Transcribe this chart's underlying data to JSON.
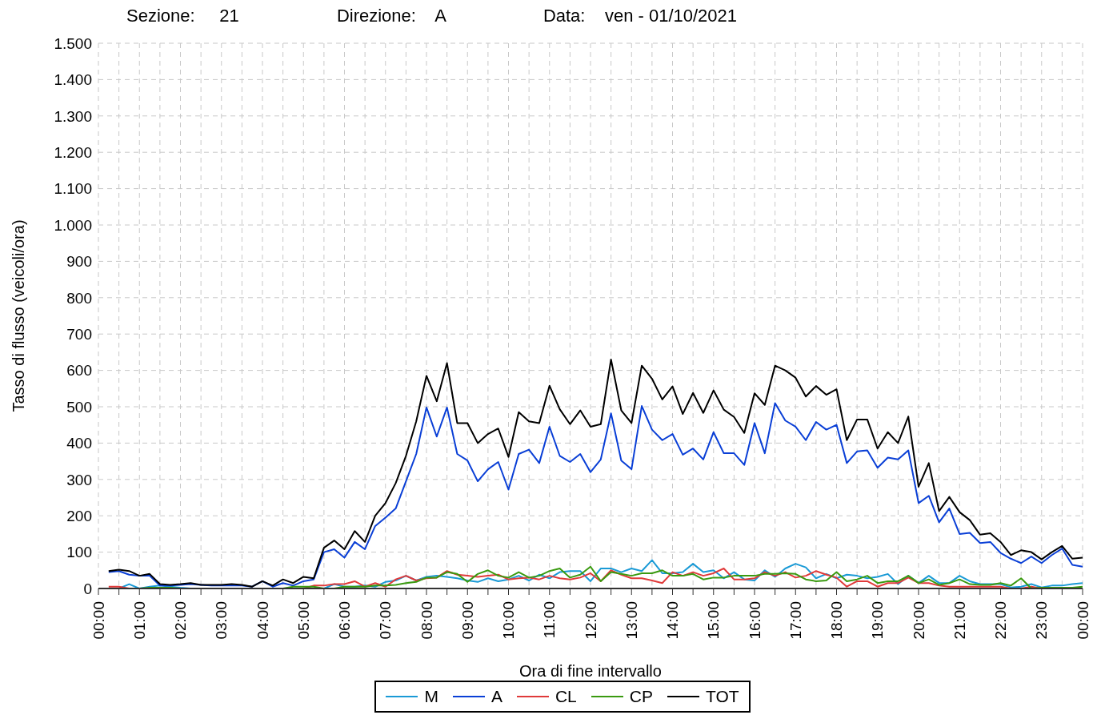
{
  "chart_data": {
    "type": "line",
    "title": "Sezione:     21                    Direzione:    A                    Data:    ven - 01/10/2021",
    "xlabel": "Ora di fine intervallo",
    "ylabel": "Tasso di flusso (veicoli/ora)",
    "x": [
      0.25,
      0.5,
      0.75,
      1,
      1.25,
      1.5,
      1.75,
      2,
      2.25,
      2.5,
      2.75,
      3,
      3.25,
      3.5,
      3.75,
      4,
      4.25,
      4.5,
      4.75,
      5,
      5.25,
      5.5,
      5.75,
      6,
      6.25,
      6.5,
      6.75,
      7,
      7.25,
      7.5,
      7.75,
      8,
      8.25,
      8.5,
      8.75,
      9,
      9.25,
      9.5,
      9.75,
      10,
      10.25,
      10.5,
      10.75,
      11,
      11.25,
      11.5,
      11.75,
      12,
      12.25,
      12.5,
      12.75,
      13,
      13.25,
      13.5,
      13.75,
      14,
      14.25,
      14.5,
      14.75,
      15,
      15.25,
      15.5,
      15.75,
      16,
      16.25,
      16.5,
      16.75,
      17,
      17.25,
      17.5,
      17.75,
      18,
      18.25,
      18.5,
      18.75,
      19,
      19.25,
      19.5,
      19.75,
      20,
      20.25,
      20.5,
      20.75,
      21,
      21.25,
      21.5,
      21.75,
      22,
      22.25,
      22.5,
      22.75,
      23,
      23.25,
      23.5,
      23.75,
      24
    ],
    "series": [
      {
        "name": "M",
        "color": "#1a9ad6",
        "values": [
          0,
          0,
          12,
          0,
          5,
          8,
          5,
          2,
          0,
          0,
          0,
          0,
          0,
          0,
          0,
          0,
          0,
          0,
          0,
          0,
          0,
          0,
          12,
          5,
          5,
          8,
          5,
          18,
          22,
          35,
          22,
          32,
          35,
          32,
          28,
          22,
          18,
          28,
          20,
          25,
          35,
          22,
          38,
          28,
          45,
          48,
          48,
          20,
          55,
          55,
          45,
          55,
          48,
          78,
          42,
          42,
          45,
          68,
          45,
          50,
          28,
          45,
          25,
          22,
          50,
          32,
          55,
          68,
          58,
          28,
          40,
          28,
          38,
          35,
          28,
          32,
          40,
          12,
          35,
          15,
          35,
          15,
          15,
          35,
          20,
          12,
          12,
          12,
          3,
          5,
          12,
          3,
          8,
          8,
          12,
          15
        ]
      },
      {
        "name": "A",
        "color": "#0a3fd6",
        "values": [
          45,
          48,
          38,
          35,
          35,
          8,
          8,
          10,
          12,
          10,
          8,
          8,
          8,
          8,
          5,
          20,
          5,
          15,
          8,
          20,
          25,
          100,
          108,
          85,
          128,
          108,
          172,
          195,
          220,
          295,
          370,
          498,
          418,
          498,
          370,
          352,
          295,
          328,
          348,
          272,
          370,
          382,
          345,
          445,
          365,
          348,
          370,
          320,
          355,
          482,
          352,
          328,
          502,
          437,
          408,
          425,
          368,
          385,
          355,
          430,
          372,
          372,
          340,
          455,
          372,
          510,
          462,
          445,
          408,
          458,
          437,
          450,
          345,
          377,
          380,
          332,
          360,
          355,
          380,
          235,
          255,
          182,
          220,
          150,
          153,
          125,
          128,
          98,
          82,
          70,
          88,
          70,
          92,
          110,
          65,
          60
        ]
      },
      {
        "name": "CL",
        "color": "#e03a3a",
        "values": [
          5,
          5,
          0,
          0,
          0,
          0,
          0,
          0,
          0,
          0,
          0,
          0,
          0,
          0,
          0,
          0,
          0,
          0,
          0,
          0,
          8,
          8,
          12,
          12,
          20,
          5,
          15,
          5,
          25,
          35,
          22,
          28,
          30,
          48,
          38,
          35,
          32,
          35,
          38,
          25,
          28,
          30,
          25,
          35,
          28,
          25,
          30,
          42,
          20,
          50,
          38,
          28,
          28,
          22,
          15,
          45,
          35,
          45,
          35,
          42,
          55,
          25,
          25,
          28,
          45,
          35,
          45,
          30,
          35,
          48,
          38,
          30,
          5,
          20,
          20,
          5,
          15,
          15,
          30,
          15,
          15,
          8,
          5,
          5,
          5,
          5,
          5,
          5,
          0,
          0,
          5,
          0,
          0,
          null,
          null,
          null
        ]
      },
      {
        "name": "CP",
        "color": "#3a9a10",
        "values": [
          null,
          null,
          null,
          0,
          2,
          2,
          2,
          0,
          0,
          0,
          0,
          0,
          0,
          0,
          0,
          0,
          0,
          0,
          5,
          5,
          5,
          0,
          0,
          5,
          5,
          5,
          8,
          8,
          10,
          15,
          18,
          30,
          30,
          45,
          40,
          18,
          40,
          50,
          35,
          30,
          45,
          30,
          35,
          48,
          55,
          30,
          38,
          60,
          20,
          45,
          40,
          35,
          42,
          42,
          50,
          35,
          35,
          40,
          25,
          30,
          30,
          35,
          35,
          35,
          40,
          40,
          42,
          40,
          25,
          20,
          22,
          45,
          20,
          25,
          35,
          15,
          20,
          20,
          35,
          15,
          25,
          10,
          15,
          25,
          12,
          10,
          10,
          15,
          8,
          28,
          0,
          2,
          2,
          2,
          2,
          5
        ]
      },
      {
        "name": "TOT",
        "color": "#000000",
        "values": [
          48,
          52,
          48,
          35,
          40,
          12,
          10,
          12,
          15,
          10,
          10,
          10,
          12,
          10,
          5,
          20,
          8,
          25,
          15,
          32,
          28,
          112,
          132,
          108,
          158,
          128,
          200,
          235,
          290,
          365,
          460,
          585,
          515,
          620,
          455,
          455,
          400,
          425,
          440,
          362,
          485,
          460,
          455,
          558,
          493,
          452,
          490,
          445,
          452,
          630,
          490,
          455,
          613,
          577,
          520,
          556,
          480,
          538,
          483,
          545,
          492,
          472,
          428,
          537,
          505,
          613,
          600,
          580,
          528,
          557,
          533,
          548,
          408,
          465,
          465,
          385,
          430,
          400,
          473,
          280,
          345,
          213,
          252,
          210,
          188,
          148,
          152,
          128,
          92,
          105,
          100,
          80,
          100,
          117,
          82,
          85
        ]
      }
    ],
    "xlim": [
      0,
      24
    ],
    "xticks": [
      {
        "value": 0,
        "label": "00:00"
      },
      {
        "value": 0.5,
        "label": null
      },
      {
        "value": 1,
        "label": "01:00"
      },
      {
        "value": 1.5,
        "label": null
      },
      {
        "value": 2,
        "label": "02:00"
      },
      {
        "value": 2.5,
        "label": null
      },
      {
        "value": 3,
        "label": "03:00"
      },
      {
        "value": 3.5,
        "label": null
      },
      {
        "value": 4,
        "label": "04:00"
      },
      {
        "value": 4.5,
        "label": null
      },
      {
        "value": 5,
        "label": "05:00"
      },
      {
        "value": 5.5,
        "label": null
      },
      {
        "value": 6,
        "label": "06:00"
      },
      {
        "value": 6.5,
        "label": null
      },
      {
        "value": 7,
        "label": "07:00"
      },
      {
        "value": 7.5,
        "label": null
      },
      {
        "value": 8,
        "label": "08:00"
      },
      {
        "value": 8.5,
        "label": null
      },
      {
        "value": 9,
        "label": "09:00"
      },
      {
        "value": 9.5,
        "label": null
      },
      {
        "value": 10,
        "label": "10:00"
      },
      {
        "value": 10.5,
        "label": null
      },
      {
        "value": 11,
        "label": "11:00"
      },
      {
        "value": 11.5,
        "label": null
      },
      {
        "value": 12,
        "label": "12:00"
      },
      {
        "value": 12.5,
        "label": null
      },
      {
        "value": 13,
        "label": "13:00"
      },
      {
        "value": 13.5,
        "label": null
      },
      {
        "value": 14,
        "label": "14:00"
      },
      {
        "value": 14.5,
        "label": null
      },
      {
        "value": 15,
        "label": "15:00"
      },
      {
        "value": 15.5,
        "label": null
      },
      {
        "value": 16,
        "label": "16:00"
      },
      {
        "value": 16.5,
        "label": null
      },
      {
        "value": 17,
        "label": "17:00"
      },
      {
        "value": 17.5,
        "label": null
      },
      {
        "value": 18,
        "label": "18:00"
      },
      {
        "value": 18.5,
        "label": null
      },
      {
        "value": 19,
        "label": "19:00"
      },
      {
        "value": 19.5,
        "label": null
      },
      {
        "value": 20,
        "label": "20:00"
      },
      {
        "value": 20.5,
        "label": null
      },
      {
        "value": 21,
        "label": "21:00"
      },
      {
        "value": 21.5,
        "label": null
      },
      {
        "value": 22,
        "label": "22:00"
      },
      {
        "value": 22.5,
        "label": null
      },
      {
        "value": 23,
        "label": "23:00"
      },
      {
        "value": 23.5,
        "label": null
      },
      {
        "value": 24,
        "label": "00:00"
      }
    ],
    "ylim": [
      0,
      1500
    ],
    "yticks": [
      0,
      100,
      200,
      300,
      400,
      500,
      600,
      700,
      800,
      900,
      {
        "value": 1000,
        "label": "1.000"
      },
      {
        "value": 1100,
        "label": "1.100"
      },
      {
        "value": 1200,
        "label": "1.200"
      },
      {
        "value": 1300,
        "label": "1.300"
      },
      {
        "value": 1400,
        "label": "1.400"
      },
      {
        "value": 1500,
        "label": "1.500"
      }
    ],
    "grid": true,
    "legend": "bottom",
    "marker": "none",
    "line_style": "solid"
  }
}
